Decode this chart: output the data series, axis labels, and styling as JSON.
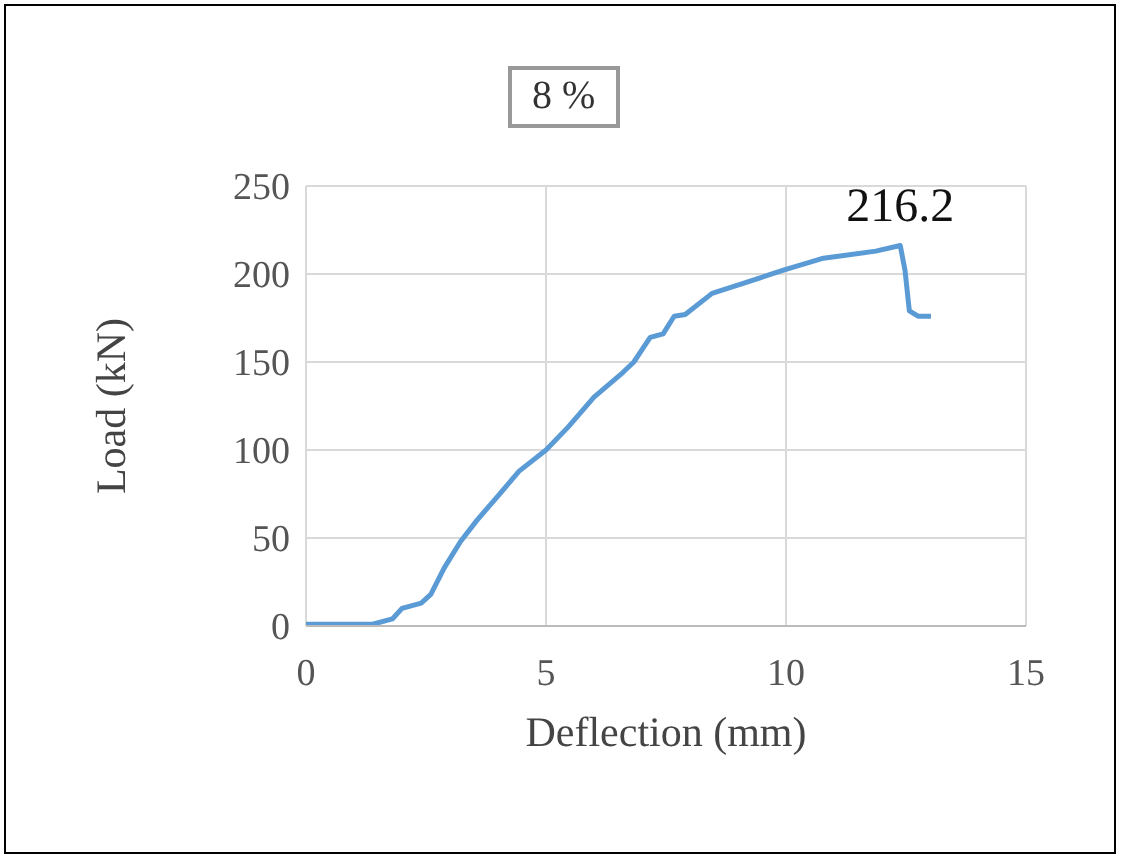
{
  "chart_data": {
    "type": "line",
    "title": "8 %",
    "xlabel": "Deflection (mm)",
    "ylabel": "Load (kN)",
    "xlim": [
      0,
      15
    ],
    "xticks": [
      0,
      5,
      10,
      15
    ],
    "ylim": [
      0,
      250
    ],
    "yticks": [
      0,
      50,
      100,
      150,
      200,
      250
    ],
    "grid": true,
    "marker": "none",
    "annotations": [
      {
        "text": "216.2",
        "x": 12.38,
        "y": 216.2
      }
    ],
    "series": [
      {
        "color": "#5b9bd5",
        "x": [
          0,
          1.39,
          1.8,
          2.0,
          2.4,
          2.6,
          2.88,
          3.22,
          3.56,
          3.97,
          4.44,
          5.0,
          5.46,
          6.0,
          6.6,
          6.83,
          7.17,
          7.44,
          7.67,
          7.9,
          8.46,
          9.14,
          9.93,
          10.78,
          11.87,
          12.38,
          12.48,
          12.57,
          12.75,
          13.02
        ],
        "values": [
          1,
          1,
          4,
          10,
          13,
          18,
          33,
          48,
          60,
          73,
          88,
          100,
          113,
          130,
          144,
          150,
          164,
          166,
          176,
          177,
          189,
          195,
          202,
          209,
          213,
          216.2,
          202,
          179,
          176,
          176
        ]
      }
    ]
  }
}
